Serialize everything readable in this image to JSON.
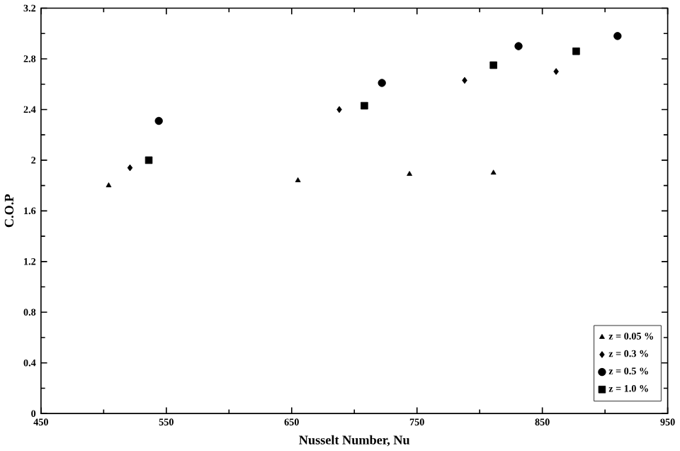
{
  "chart_data": {
    "type": "scatter",
    "xlabel": "Nusselt Number, Nu",
    "ylabel": "C.O.P",
    "xlim": [
      450,
      950
    ],
    "ylim": [
      0,
      3.2
    ],
    "xticks": [
      450,
      550,
      650,
      750,
      850,
      950
    ],
    "yticks": [
      0,
      0.4,
      0.8,
      1.2,
      1.6,
      2,
      2.4,
      2.8,
      3.2
    ],
    "legend": "bottom right",
    "grid": false,
    "series": [
      {
        "name": "z = 0.05 %",
        "color": "#000000",
        "marker": "triangle",
        "x": [
          504,
          655,
          744,
          811
        ],
        "values": [
          1.8,
          1.84,
          1.89,
          1.9
        ]
      },
      {
        "name": "z = 0.3 %",
        "color": "#000000",
        "marker": "diamond",
        "x": [
          521,
          688,
          788,
          861
        ],
        "values": [
          1.94,
          2.4,
          2.63,
          2.7
        ]
      },
      {
        "name": "z = 0.5 %",
        "color": "#000000",
        "marker": "circle",
        "x": [
          544,
          722,
          831,
          910
        ],
        "values": [
          2.31,
          2.61,
          2.9,
          2.98
        ]
      },
      {
        "name": "z = 1.0 %",
        "color": "#000000",
        "marker": "square",
        "x": [
          536,
          708,
          811,
          877
        ],
        "values": [
          2.0,
          2.43,
          2.75,
          2.86
        ]
      }
    ]
  }
}
